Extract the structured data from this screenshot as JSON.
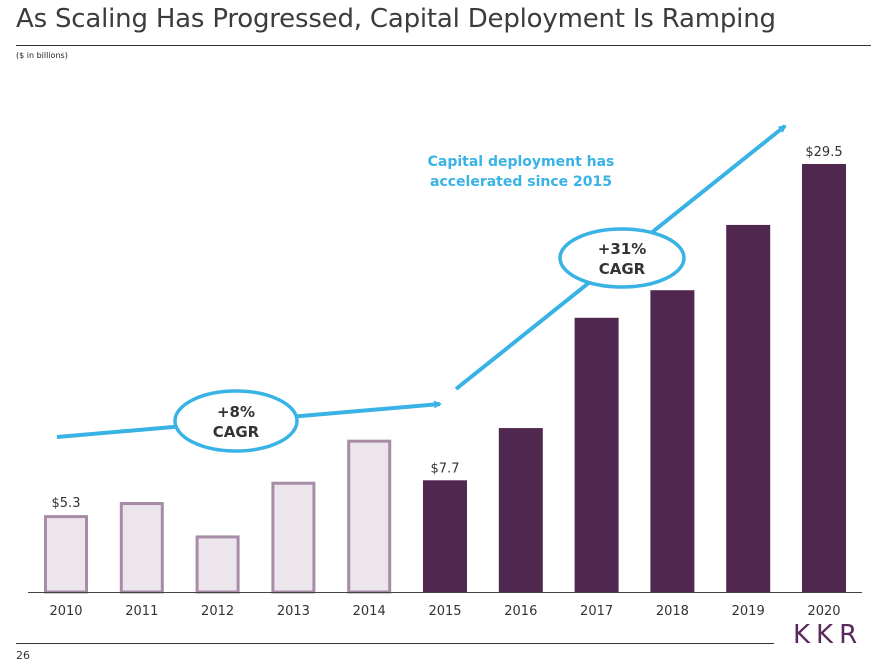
{
  "title": "As Scaling Has Progressed, Capital Deployment Is Ramping",
  "subtitle": "($ in billions)",
  "page_number": "26",
  "logo_text": "KKR",
  "colors": {
    "light_fill": "#ede5ec",
    "light_stroke": "#a78ca8",
    "dark_fill": "#50284f",
    "accent": "#39b2e5",
    "text": "#333333"
  },
  "chart_data": {
    "type": "bar",
    "title": "",
    "xlabel": "",
    "ylabel": "",
    "ylim": [
      0,
      30.4
    ],
    "categories": [
      "2010",
      "2011",
      "2012",
      "2013",
      "2014",
      "2015",
      "2016",
      "2017",
      "2018",
      "2019",
      "2020"
    ],
    "values": [
      5.3,
      6.2,
      3.9,
      7.6,
      10.5,
      7.7,
      11.3,
      18.9,
      20.8,
      25.3,
      29.5
    ],
    "data_labels": [
      "$5.3",
      "",
      "",
      "",
      "",
      "$7.7",
      "",
      "",
      "",
      "",
      "$29.5"
    ],
    "series_styles": [
      "light",
      "light",
      "light",
      "light",
      "light",
      "dark",
      "dark",
      "dark",
      "dark",
      "dark",
      "dark"
    ],
    "annotations": {
      "early_cagr": {
        "line1": "+8%",
        "line2": "CAGR"
      },
      "late_cagr": {
        "line1": "+31%",
        "line2": "CAGR"
      },
      "callout": {
        "line1": "Capital deployment has",
        "line2": "accelerated since 2015"
      }
    }
  }
}
